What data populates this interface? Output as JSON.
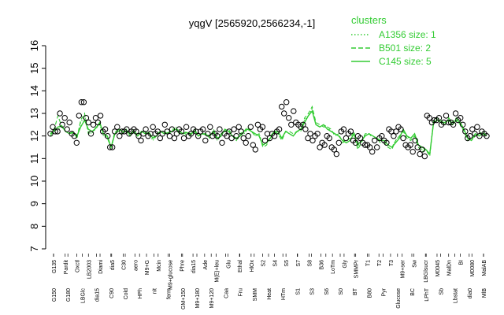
{
  "chart_data": {
    "type": "line",
    "title": "yqgV [2565920,2566234,-1]",
    "xlabel": "",
    "ylabel": "",
    "ylim": [
      7,
      16
    ],
    "yticks": [
      7,
      8,
      9,
      10,
      11,
      12,
      13,
      14,
      15,
      16
    ],
    "grid": false,
    "legend": {
      "title": "clusters",
      "position": "top-right",
      "entries": [
        {
          "label": "A1356 size: 1",
          "style": "dotted"
        },
        {
          "label": "B501 size: 2",
          "style": "dashed"
        },
        {
          "label": "C145 size: 5",
          "style": "solid"
        }
      ]
    },
    "x_tick_labels_upper": [
      "G135",
      "Pardit",
      "Oxctl",
      "LB2003",
      "Diami",
      "dia5",
      "C30",
      "aero",
      "M9+G",
      "Mcin",
      "M9+glucose",
      "Phre",
      "dia15",
      "Ade",
      "M(E)+leu",
      "Glu",
      "Ethal",
      "HlOx",
      "S2",
      "S4",
      "S5",
      "S7",
      "S8",
      "B36",
      "LoTm",
      "Gly",
      "SMMPr",
      "T1",
      "T2",
      "T3",
      "M9+ser",
      "Sw",
      "LBGlsucr",
      "M0045",
      "MalDn",
      "BI",
      "M0080",
      "MalAB"
    ],
    "x_tick_labels_lower": [
      "G150",
      "G180",
      "LBGlc",
      "dia15",
      "C90",
      "Cold",
      "HPh",
      "nit",
      "ferm",
      "GM+150",
      "M9+180",
      "M9+120",
      "Caa",
      "Fru",
      "SMM",
      "Heat",
      "HTm",
      "S1",
      "S3",
      "S6",
      "S0",
      "BT",
      "B80",
      "Pyr",
      "Glucose",
      "BC",
      "LPhT",
      "Sb",
      "Lbstat",
      "dia0",
      "MlB"
    ],
    "series": [
      {
        "name": "C145 size: 5",
        "style": "solid",
        "values": [
          12.1,
          12.25,
          12.4,
          12.45,
          12.2,
          12.1,
          12.15,
          12.0,
          12.4,
          12.7,
          12.3,
          12.2,
          12.35,
          12.6,
          12.1,
          12.0,
          11.5,
          12.1,
          12.3,
          12.2,
          12.2,
          12.1,
          12.15,
          12.0,
          12.2,
          12.1,
          12.15,
          11.9,
          12.0,
          12.2,
          12.1,
          12.15,
          12.2,
          12.3,
          12.2,
          12.1,
          12.15,
          12.1,
          12.2,
          12.0,
          12.1,
          12.05,
          12.0,
          12.2,
          11.9,
          12.0,
          12.3,
          12.2,
          12.0,
          11.9,
          12.0,
          12.2,
          12.3,
          12.2,
          12.1,
          12.0,
          11.6,
          11.7,
          11.9,
          12.2,
          12.2,
          11.9,
          12.2,
          12.1,
          12.0,
          12.2,
          12.3,
          12.6,
          12.9,
          13.1,
          12.5,
          12.4,
          12.5,
          12.3,
          12.2,
          12.1,
          12.0,
          11.8,
          11.7,
          11.8,
          12.1,
          11.6,
          11.8,
          12.0,
          12.1,
          12.0,
          11.9,
          11.8,
          11.8,
          11.6,
          11.5,
          11.7,
          11.9,
          12.3,
          12.0,
          11.9,
          12.1,
          11.6,
          11.5,
          11.4,
          11.2,
          12.6,
          12.7,
          12.6,
          12.6,
          12.7,
          12.5,
          12.7,
          12.6,
          12.3,
          11.9,
          11.8,
          12.1,
          12.0,
          12.1,
          12.0
        ]
      },
      {
        "name": "B501 size: 2",
        "style": "dashed",
        "values": [
          12.0,
          12.3,
          12.9,
          12.4,
          12.2,
          12.1,
          12.2,
          11.9,
          12.7,
          13.0,
          12.1,
          12.2,
          12.3,
          12.6,
          12.1,
          11.9,
          11.5,
          12.2,
          12.2,
          12.1,
          12.3,
          12.0,
          12.3,
          12.0,
          12.2,
          12.2,
          12.1,
          11.9,
          12.1,
          12.2,
          12.2,
          12.1,
          12.3,
          12.3,
          12.1,
          12.1,
          12.2,
          12.0,
          12.3,
          12.0,
          12.1,
          12.1,
          11.9,
          12.3,
          11.9,
          12.1,
          12.2,
          12.3,
          12.0,
          11.8,
          12.1,
          12.2,
          12.4,
          12.2,
          12.0,
          12.1,
          11.5,
          11.6,
          12.0,
          12.2,
          12.1,
          11.8,
          12.2,
          12.2,
          12.1,
          12.2,
          12.2,
          12.8,
          13.0,
          13.3,
          12.6,
          12.5,
          12.4,
          12.4,
          12.3,
          12.0,
          12.1,
          11.7,
          11.8,
          11.9,
          12.2,
          11.4,
          11.7,
          12.1,
          12.1,
          11.9,
          11.9,
          11.7,
          11.7,
          11.5,
          11.4,
          11.8,
          12.0,
          12.2,
          11.9,
          11.8,
          12.0,
          11.5,
          11.3,
          11.4,
          11.1,
          12.7,
          12.8,
          12.7,
          12.5,
          12.8,
          12.6,
          12.8,
          12.5,
          12.2,
          11.8,
          11.9,
          12.0,
          12.1,
          12.2,
          12.0
        ]
      },
      {
        "name": "A1356 size: 1",
        "style": "dotted",
        "values": [
          12.0,
          12.2,
          12.3,
          12.4,
          12.2,
          12.1,
          12.2,
          11.9,
          12.6,
          12.9,
          12.2,
          12.1,
          12.4,
          12.5,
          12.0,
          11.9,
          11.5,
          12.1,
          12.2,
          12.3,
          12.2,
          12.0,
          12.2,
          12.0,
          12.2,
          12.2,
          12.1,
          11.8,
          12.0,
          12.2,
          12.2,
          12.1,
          12.2,
          12.4,
          12.2,
          12.0,
          12.1,
          12.1,
          12.3,
          12.0,
          12.1,
          12.1,
          12.0,
          12.2,
          11.8,
          12.0,
          12.3,
          12.2,
          12.0,
          11.8,
          12.0,
          12.1,
          12.3,
          12.2,
          12.0,
          12.1,
          11.6,
          11.7,
          11.9,
          12.2,
          12.1,
          11.9,
          12.2,
          12.1,
          12.0,
          12.2,
          12.3,
          12.7,
          12.9,
          13.2,
          12.5,
          12.4,
          12.5,
          12.4,
          12.2,
          12.1,
          12.0,
          11.8,
          11.8,
          11.8,
          12.1,
          11.5,
          11.8,
          12.1,
          12.1,
          12.0,
          11.9,
          11.8,
          11.8,
          11.6,
          11.5,
          11.8,
          12.0,
          12.2,
          12.0,
          11.8,
          12.0,
          11.6,
          11.4,
          11.4,
          11.2,
          12.6,
          12.8,
          12.6,
          12.5,
          12.8,
          12.6,
          12.8,
          12.6,
          12.3,
          11.9,
          11.8,
          12.0,
          12.1,
          12.1,
          12.0
        ]
      }
    ],
    "points": [
      12.1,
      12.4,
      12.2,
      12.2,
      13.0,
      12.5,
      12.8,
      12.3,
      12.6,
      12.1,
      12.0,
      11.7,
      12.9,
      13.5,
      13.5,
      12.8,
      12.6,
      12.1,
      12.5,
      12.8,
      12.6,
      12.9,
      12.2,
      12.3,
      12.0,
      11.5,
      11.5,
      12.2,
      12.4,
      12.0,
      12.2,
      12.2,
      12.3,
      12.1,
      12.2,
      12.3,
      12.2,
      12.0,
      11.8,
      12.1,
      12.3,
      12.0,
      12.1,
      12.4,
      12.1,
      12.2,
      11.9,
      12.1,
      12.5,
      12.2,
      12.0,
      12.3,
      11.9,
      12.1,
      12.3,
      12.2,
      11.9,
      12.4,
      12.0,
      12.1,
      12.3,
      12.2,
      12.0,
      12.2,
      12.3,
      11.8,
      12.1,
      12.4,
      12.0,
      12.1,
      12.0,
      12.3,
      11.7,
      12.1,
      12.0,
      12.2,
      11.9,
      12.3,
      12.0,
      12.4,
      12.2,
      11.9,
      11.7,
      12.0,
      12.4,
      11.6,
      11.4,
      12.5,
      12.3,
      12.4,
      11.8,
      12.1,
      11.9,
      12.1,
      12.0,
      12.2,
      12.3,
      13.3,
      13.0,
      13.5,
      12.8,
      12.5,
      13.1,
      12.6,
      12.5,
      12.4,
      12.5,
      12.3,
      11.9,
      12.1,
      11.8,
      12.0,
      12.1,
      11.5,
      11.7,
      11.6,
      12.0,
      11.9,
      11.5,
      11.4,
      11.2,
      11.7,
      12.2,
      12.3,
      11.9,
      12.1,
      12.2,
      11.8,
      11.7,
      12.0,
      11.9,
      11.7,
      11.6,
      11.6,
      11.5,
      11.3,
      11.8,
      11.5,
      11.9,
      12.0,
      11.8,
      11.7,
      12.3,
      12.2,
      12.0,
      12.2,
      12.4,
      12.3,
      11.9,
      11.6,
      11.5,
      11.6,
      11.3,
      11.8,
      11.5,
      11.2,
      11.4,
      11.1,
      12.9,
      12.8,
      12.6,
      12.7,
      12.7,
      12.8,
      12.5,
      12.6,
      12.9,
      12.6,
      12.6,
      12.5,
      13.0,
      12.7,
      12.8,
      12.5,
      12.2,
      11.9,
      12.0,
      12.3,
      12.1,
      12.4,
      12.0,
      12.2,
      12.1,
      12.0
    ],
    "colors": {
      "series": "#33cc33",
      "points": "#000000",
      "legend_text": "#33cc33",
      "axis": "#000000"
    }
  }
}
